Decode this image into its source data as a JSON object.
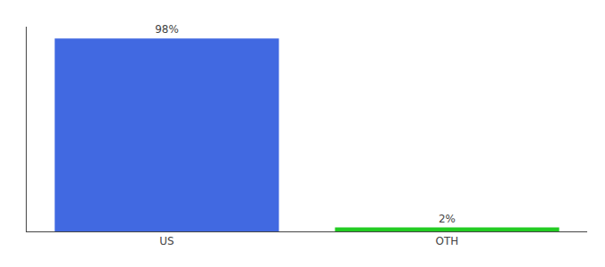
{
  "chart_data": {
    "type": "bar",
    "categories": [
      "US",
      "OTH"
    ],
    "values": [
      98,
      2
    ],
    "value_labels": [
      "98%",
      "2%"
    ],
    "colors": [
      "#4169e1",
      "#22cc22"
    ],
    "ylim": [
      0,
      104
    ],
    "yticks": [],
    "tick_labels": "x",
    "data_labels": true,
    "grid": false
  }
}
